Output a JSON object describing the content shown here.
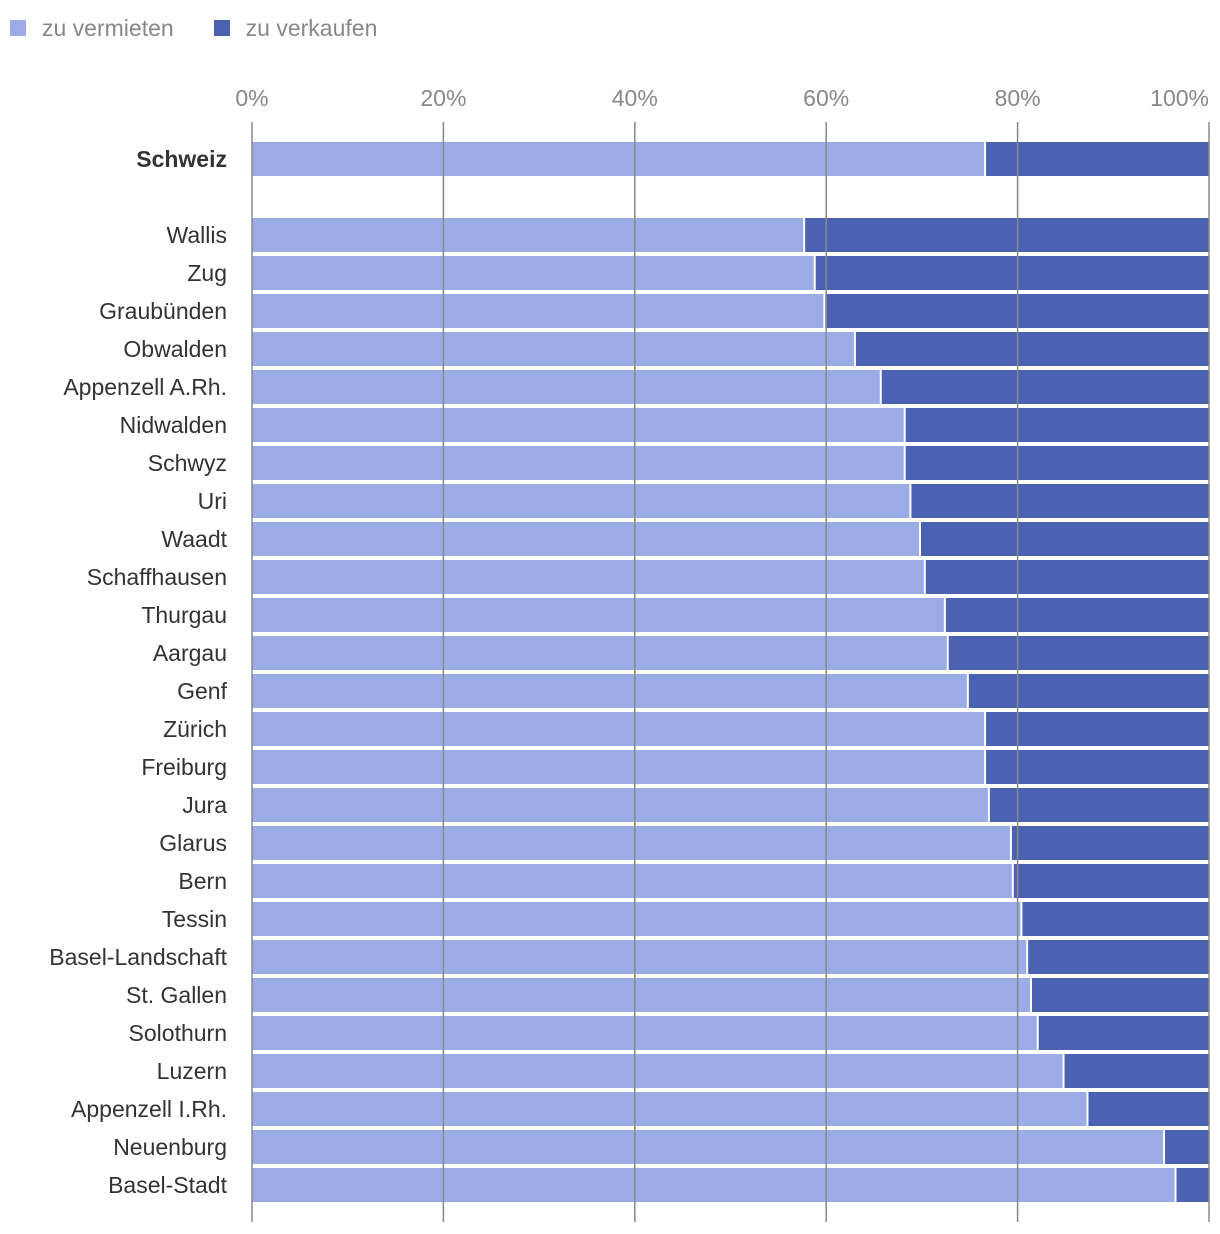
{
  "colors": {
    "rent": "#9aabe5",
    "sale": "#4a62b1",
    "grid": "#888888"
  },
  "legend": [
    {
      "label": "zu vermieten",
      "color": "#9aabe5"
    },
    {
      "label": "zu verkaufen",
      "color": "#4a62b1"
    }
  ],
  "chart_data": {
    "type": "bar",
    "orientation": "horizontal",
    "stacked": "percent",
    "xlim": [
      0,
      100
    ],
    "x_ticks": [
      "0%",
      "20%",
      "40%",
      "60%",
      "80%",
      "100%"
    ],
    "categories": [
      "Schweiz",
      "Wallis",
      "Zug",
      "Graubünden",
      "Obwalden",
      "Appenzell A.Rh.",
      "Nidwalden",
      "Schwyz",
      "Uri",
      "Waadt",
      "Schaffhausen",
      "Thurgau",
      "Aargau",
      "Genf",
      "Zürich",
      "Freiburg",
      "Jura",
      "Glarus",
      "Bern",
      "Tessin",
      "Basel-Landschaft",
      "St. Gallen",
      "Solothurn",
      "Luzern",
      "Appenzell I.Rh.",
      "Neuenburg",
      "Basel-Stadt"
    ],
    "emphasized": [
      "Schweiz"
    ],
    "series": [
      {
        "name": "zu vermieten",
        "values": [
          76.6,
          57.7,
          58.8,
          59.8,
          63.0,
          65.7,
          68.2,
          68.2,
          68.8,
          69.8,
          70.3,
          72.4,
          72.7,
          74.8,
          76.6,
          76.6,
          77.0,
          79.3,
          79.5,
          80.4,
          81.0,
          81.4,
          82.1,
          84.8,
          87.3,
          95.3,
          96.5
        ]
      },
      {
        "name": "zu verkaufen",
        "values": [
          23.4,
          42.3,
          41.2,
          40.2,
          37.0,
          34.3,
          31.8,
          31.8,
          31.2,
          30.2,
          29.7,
          27.6,
          27.3,
          25.2,
          23.4,
          23.4,
          23.0,
          20.7,
          20.5,
          19.6,
          19.0,
          18.6,
          17.9,
          15.2,
          12.7,
          4.7,
          3.5
        ]
      }
    ]
  }
}
